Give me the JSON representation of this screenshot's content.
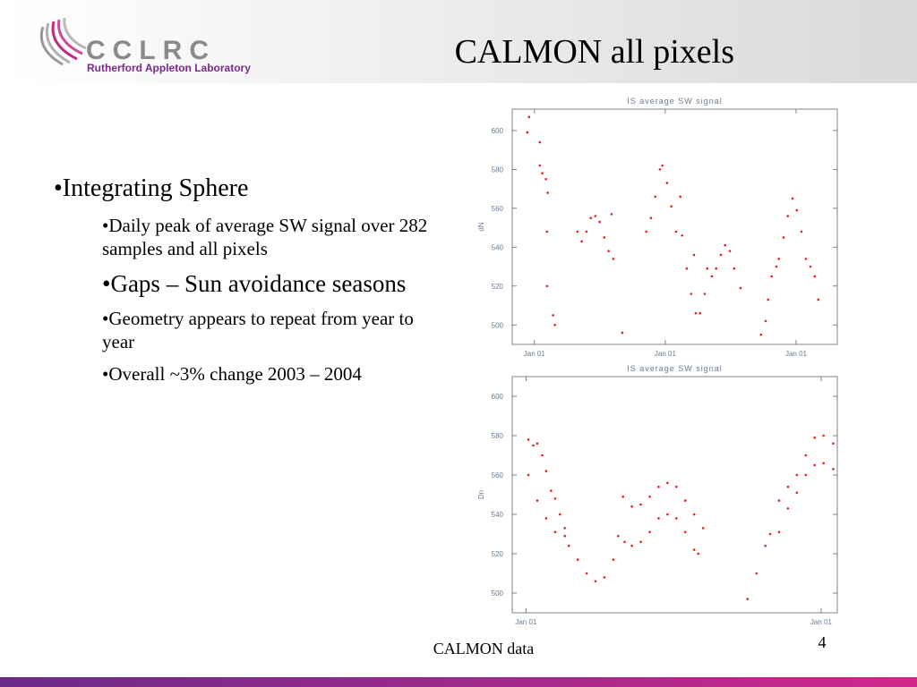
{
  "header": {
    "logo_name": "CCLRC",
    "logo_subtitle": "Rutherford Appleton Laboratory",
    "title": "CALMON all pixels"
  },
  "bullets": [
    {
      "level": 1,
      "text": "•Integrating Sphere"
    },
    {
      "level": 2,
      "text": "•Daily peak of average SW signal over 282 samples and all pixels"
    },
    {
      "level": 2,
      "text": "•Gaps – Sun avoidance seasons"
    },
    {
      "level": 2,
      "text": "•Geometry appears to repeat from year to year"
    },
    {
      "level": 2,
      "text": "•Overall ~3% change 2003 – 2004"
    }
  ],
  "footer": {
    "caption": "CALMON data",
    "page": "4"
  },
  "chart_data": [
    {
      "type": "scatter",
      "title": "IS average SW signal",
      "ylabel": "dN",
      "xlim": [
        -62,
        845
      ],
      "xticks": [
        {
          "value": 0,
          "label": "Jan 01"
        },
        {
          "value": 365,
          "label": "Jan 01"
        },
        {
          "value": 730,
          "label": "Jan 01"
        }
      ],
      "ylim": [
        490,
        611
      ],
      "yticks": [
        500,
        520,
        540,
        560,
        580,
        600
      ],
      "series": [
        {
          "color": "#e02020",
          "x": [
            -15,
            -20,
            15,
            15,
            22,
            32,
            37,
            35,
            35,
            52,
            57,
            120,
            132,
            145,
            157,
            170,
            182,
            195,
            207,
            220,
            215,
            245,
            312,
            325,
            337,
            350,
            357,
            370,
            382,
            395,
            412,
            425,
            437,
            450,
            462,
            475,
            482,
            495,
            507,
            520,
            532,
            545,
            557,
            575,
            407,
            445,
            632,
            645,
            652,
            662,
            675,
            682,
            695,
            707,
            720,
            732,
            745,
            757,
            770,
            782,
            792
          ],
          "values": [
            607,
            599,
            594,
            582,
            578,
            575,
            568,
            548,
            520,
            505,
            500,
            548,
            543,
            548,
            555,
            556,
            553,
            545,
            538,
            534,
            557,
            496,
            548,
            555,
            566,
            580,
            582,
            573,
            561,
            548,
            546,
            529,
            516,
            506,
            506,
            516,
            529,
            525,
            529,
            536,
            541,
            538,
            529,
            519,
            566,
            536,
            495,
            502,
            513,
            525,
            530,
            534,
            545,
            556,
            565,
            559,
            548,
            534,
            530,
            525,
            513
          ]
        }
      ]
    },
    {
      "type": "scatter",
      "title": "IS average SW signal",
      "ylabel": "Dn",
      "xlim": [
        -17,
        385
      ],
      "xticks": [
        {
          "value": 0,
          "label": "Jan 01"
        },
        {
          "value": 365,
          "label": "Jan 01"
        }
      ],
      "ylim": [
        490,
        610
      ],
      "yticks": [
        500,
        520,
        540,
        560,
        580,
        600
      ],
      "series": [
        {
          "color": "#e02020",
          "x": [
            3,
            9,
            14,
            20,
            25,
            31,
            36,
            42,
            48,
            53,
            120,
            131,
            142,
            153,
            164,
            175,
            186,
            197,
            208,
            219,
            313,
            324,
            335,
            346,
            357,
            368,
            380
          ],
          "values": [
            578,
            575,
            576,
            570,
            562,
            552,
            548,
            540,
            533,
            524,
            549,
            544,
            545,
            549,
            554,
            556,
            554,
            547,
            540,
            533,
            547,
            554,
            560,
            570,
            579,
            580,
            576
          ]
        },
        {
          "color": "#e02020",
          "x": [
            3,
            14,
            25,
            36,
            48,
            64,
            75,
            86,
            97,
            108,
            114,
            122,
            131,
            142,
            153,
            164,
            175,
            186,
            197,
            208,
            213,
            274,
            285,
            296,
            302,
            313,
            324,
            335,
            346,
            357,
            368,
            380
          ],
          "values": [
            560,
            547,
            538,
            531,
            529,
            517,
            510,
            506,
            508,
            517,
            529,
            526,
            524,
            526,
            531,
            538,
            540,
            538,
            531,
            522,
            520,
            497,
            510,
            524,
            530,
            531,
            543,
            551,
            560,
            565,
            566,
            563
          ]
        }
      ]
    }
  ]
}
